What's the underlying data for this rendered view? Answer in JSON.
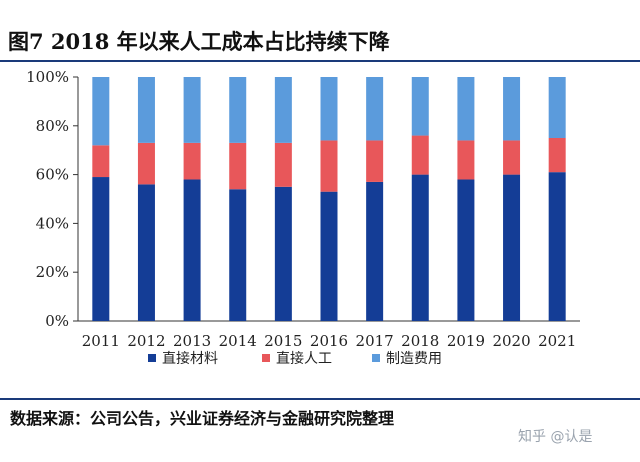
{
  "title": "图7 2018 年以来人工成本占比持续下降",
  "source": "数据来源：公司公告，兴业证券经济与金融研究院整理",
  "watermark": "知乎 @认是",
  "colors": {
    "direct_material": "#143d96",
    "direct_labor": "#e8575a",
    "manufacturing": "#5b9bdc",
    "rule": "#1a3a7a"
  },
  "chart_data": {
    "type": "bar",
    "stacked": true,
    "percent": true,
    "categories": [
      "2011",
      "2012",
      "2013",
      "2014",
      "2015",
      "2016",
      "2017",
      "2018",
      "2019",
      "2020",
      "2021"
    ],
    "series": [
      {
        "name": "直接材料",
        "values": [
          59,
          56,
          58,
          54,
          55,
          53,
          57,
          60,
          58,
          60,
          61
        ]
      },
      {
        "name": "直接人工",
        "values": [
          13,
          17,
          15,
          19,
          18,
          21,
          17,
          16,
          16,
          14,
          14
        ]
      },
      {
        "name": "制造费用",
        "values": [
          28,
          27,
          27,
          27,
          27,
          26,
          26,
          24,
          26,
          26,
          25
        ]
      }
    ],
    "yticks": [
      "0%",
      "20%",
      "40%",
      "60%",
      "80%",
      "100%"
    ],
    "ylim": [
      0,
      100
    ],
    "grid": false,
    "legend": "bottom"
  }
}
